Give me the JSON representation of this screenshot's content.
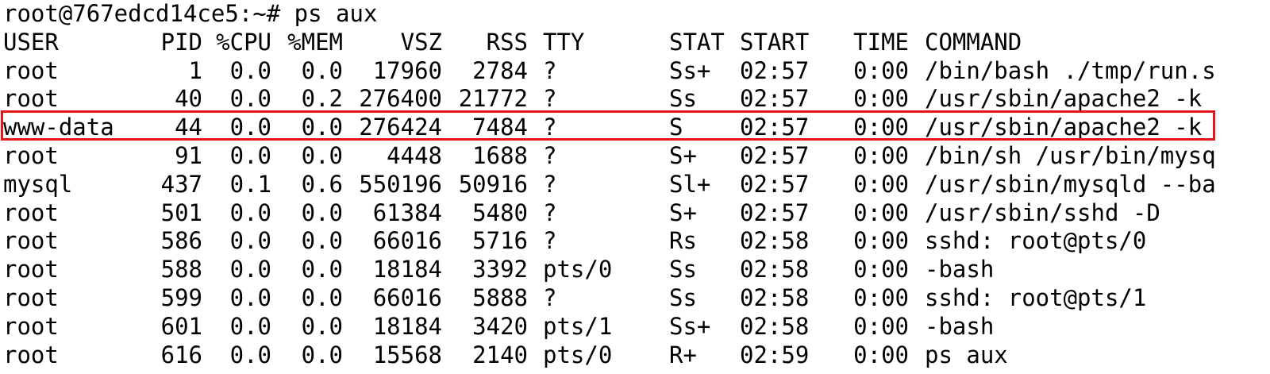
{
  "terminal": {
    "prompt": "root@767edcd14ce5:~# ps aux",
    "highlight_color": "#e8141b",
    "highlighted_pid": "44",
    "headers": {
      "user": "USER",
      "pid": "PID",
      "cpu": "%CPU",
      "mem": "%MEM",
      "vsz": "VSZ",
      "rss": "RSS",
      "tty": "TTY",
      "stat": "STAT",
      "start": "START",
      "time": "TIME",
      "command": "COMMAND"
    },
    "rows": [
      {
        "user": "root",
        "pid": "1",
        "cpu": "0.0",
        "mem": "0.0",
        "vsz": "17960",
        "rss": "2784",
        "tty": "?",
        "stat": "Ss+",
        "start": "02:57",
        "time": "0:00",
        "command": "/bin/bash ./tmp/run.s"
      },
      {
        "user": "root",
        "pid": "40",
        "cpu": "0.0",
        "mem": "0.2",
        "vsz": "276400",
        "rss": "21772",
        "tty": "?",
        "stat": "Ss",
        "start": "02:57",
        "time": "0:00",
        "command": "/usr/sbin/apache2 -k"
      },
      {
        "user": "www-data",
        "pid": "44",
        "cpu": "0.0",
        "mem": "0.0",
        "vsz": "276424",
        "rss": "7484",
        "tty": "?",
        "stat": "S",
        "start": "02:57",
        "time": "0:00",
        "command": "/usr/sbin/apache2 -k"
      },
      {
        "user": "root",
        "pid": "91",
        "cpu": "0.0",
        "mem": "0.0",
        "vsz": "4448",
        "rss": "1688",
        "tty": "?",
        "stat": "S+",
        "start": "02:57",
        "time": "0:00",
        "command": "/bin/sh /usr/bin/mysq"
      },
      {
        "user": "mysql",
        "pid": "437",
        "cpu": "0.1",
        "mem": "0.6",
        "vsz": "550196",
        "rss": "50916",
        "tty": "?",
        "stat": "Sl+",
        "start": "02:57",
        "time": "0:00",
        "command": "/usr/sbin/mysqld --ba"
      },
      {
        "user": "root",
        "pid": "501",
        "cpu": "0.0",
        "mem": "0.0",
        "vsz": "61384",
        "rss": "5480",
        "tty": "?",
        "stat": "S+",
        "start": "02:57",
        "time": "0:00",
        "command": "/usr/sbin/sshd -D"
      },
      {
        "user": "root",
        "pid": "586",
        "cpu": "0.0",
        "mem": "0.0",
        "vsz": "66016",
        "rss": "5716",
        "tty": "?",
        "stat": "Rs",
        "start": "02:58",
        "time": "0:00",
        "command": "sshd: root@pts/0"
      },
      {
        "user": "root",
        "pid": "588",
        "cpu": "0.0",
        "mem": "0.0",
        "vsz": "18184",
        "rss": "3392",
        "tty": "pts/0",
        "stat": "Ss",
        "start": "02:58",
        "time": "0:00",
        "command": "-bash"
      },
      {
        "user": "root",
        "pid": "599",
        "cpu": "0.0",
        "mem": "0.0",
        "vsz": "66016",
        "rss": "5888",
        "tty": "?",
        "stat": "Ss",
        "start": "02:58",
        "time": "0:00",
        "command": "sshd: root@pts/1"
      },
      {
        "user": "root",
        "pid": "601",
        "cpu": "0.0",
        "mem": "0.0",
        "vsz": "18184",
        "rss": "3420",
        "tty": "pts/1",
        "stat": "Ss+",
        "start": "02:58",
        "time": "0:00",
        "command": "-bash"
      },
      {
        "user": "root",
        "pid": "616",
        "cpu": "0.0",
        "mem": "0.0",
        "vsz": "15568",
        "rss": "2140",
        "tty": "pts/0",
        "stat": "R+",
        "start": "02:59",
        "time": "0:00",
        "command": "ps aux"
      }
    ]
  }
}
